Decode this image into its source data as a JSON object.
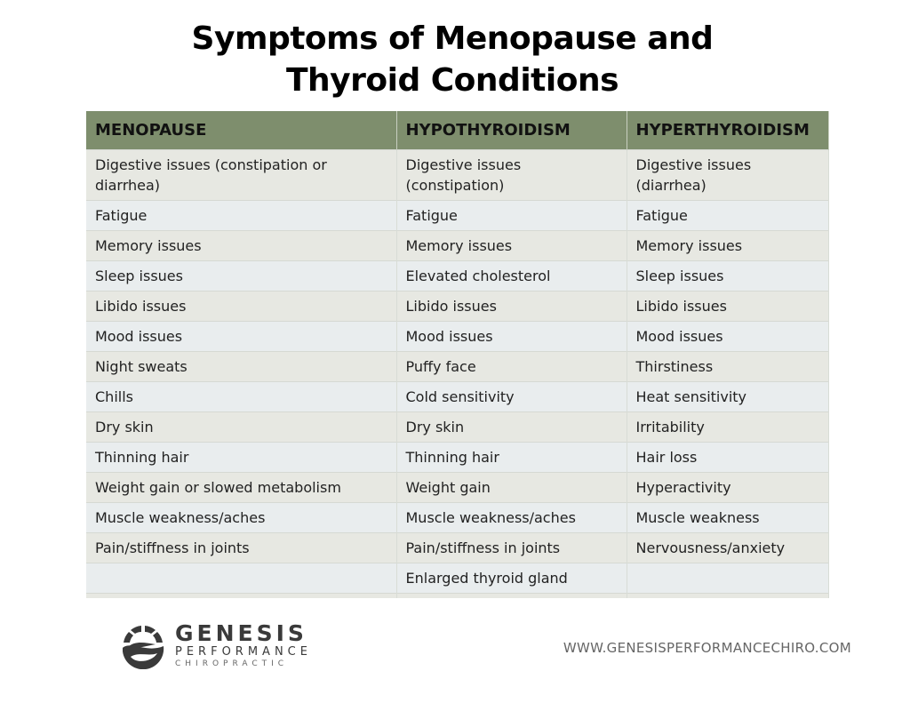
{
  "title_line1": "Symptoms of Menopause and",
  "title_line2": "Thyroid Conditions",
  "table": {
    "headers": [
      "MENOPAUSE",
      "HYPOTHYROIDISM",
      "HYPERTHYROIDISM"
    ],
    "rows": [
      [
        "Digestive issues (constipation or diarrhea)",
        "Digestive issues (constipation)",
        "Digestive issues (diarrhea)"
      ],
      [
        "Fatigue",
        "Fatigue",
        "Fatigue"
      ],
      [
        "Memory issues",
        "Memory issues",
        "Memory issues"
      ],
      [
        "Sleep issues",
        "Elevated cholesterol",
        "Sleep issues"
      ],
      [
        "Libido issues",
        "Libido issues",
        "Libido issues"
      ],
      [
        "Mood issues",
        "Mood issues",
        "Mood issues"
      ],
      [
        "Night sweats",
        "Puffy face",
        "Thirstiness"
      ],
      [
        "Chills",
        "Cold sensitivity",
        "Heat sensitivity"
      ],
      [
        "Dry skin",
        "Dry skin",
        "Irritability"
      ],
      [
        "Thinning hair",
        "Thinning hair",
        "Hair loss"
      ],
      [
        "Weight gain or slowed metabolism",
        "Weight gain",
        "Hyperactivity"
      ],
      [
        "Muscle weakness/aches",
        "Muscle weakness/aches",
        "Muscle weakness"
      ],
      [
        "Pain/stiffness in joints",
        "Pain/stiffness in joints",
        "Nervousness/anxiety"
      ],
      [
        "",
        "Enlarged thyroid gland",
        ""
      ]
    ]
  },
  "logo": {
    "line1": "GENESIS",
    "line2": "PERFORMANCE",
    "line3": "CHIROPRACTIC"
  },
  "website": "WWW.GENESISPERFORMANCECHIRO.COM",
  "colors": {
    "header": "#7e8e6d",
    "row_a": "#e7e8e2",
    "row_b": "#e9edee"
  }
}
